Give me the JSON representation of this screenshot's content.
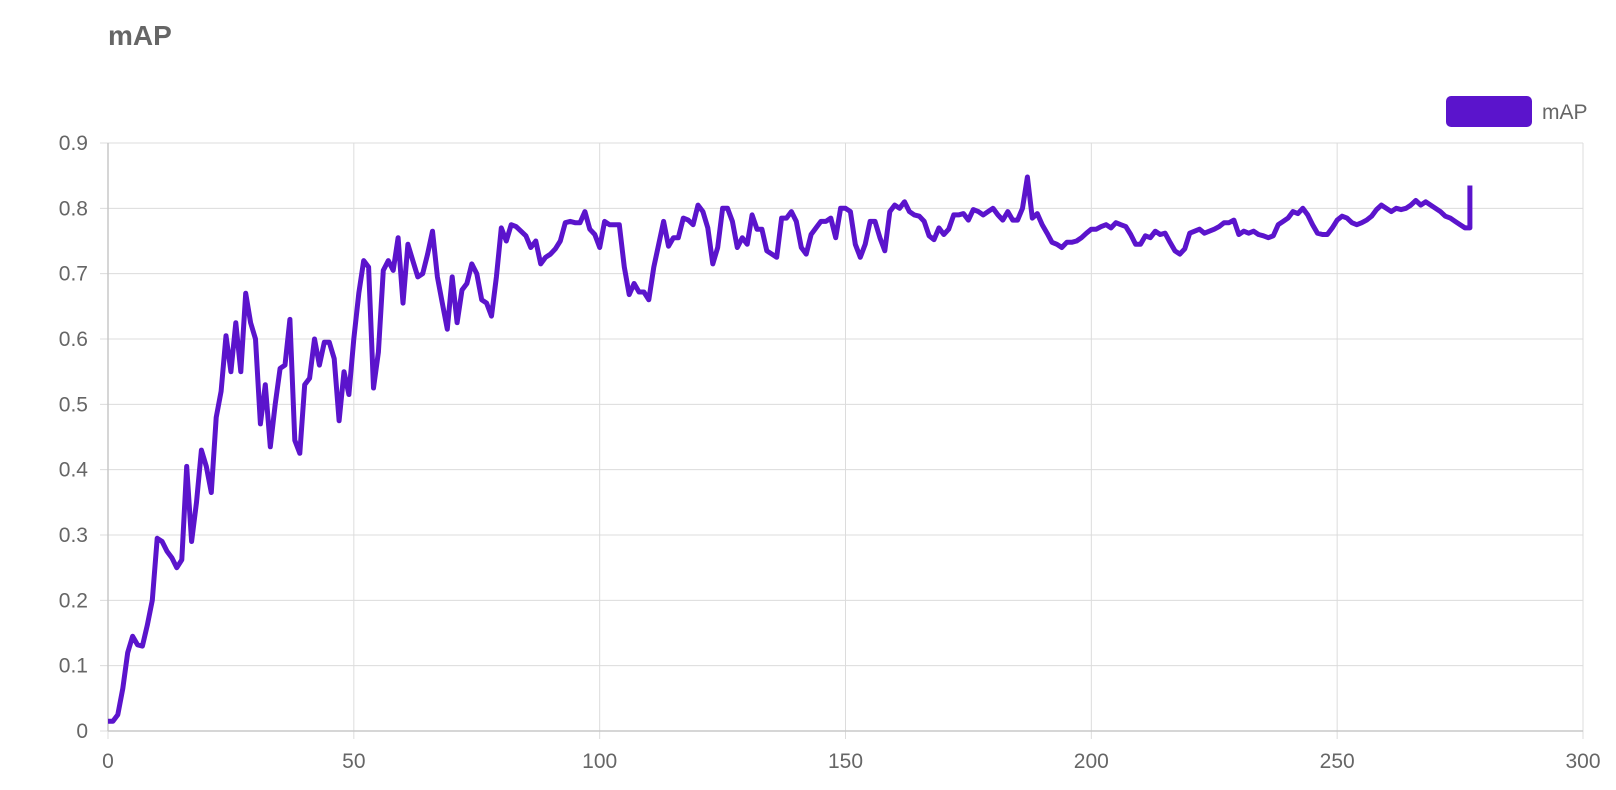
{
  "chart_data": {
    "type": "line",
    "title": "mAP",
    "xlabel": "",
    "ylabel": "",
    "xlim": [
      0,
      300
    ],
    "ylim": [
      0,
      0.9
    ],
    "x_ticks": [
      "0",
      "50",
      "100",
      "150",
      "200",
      "250",
      "300"
    ],
    "y_ticks": [
      "0",
      "0.1",
      "0.2",
      "0.3",
      "0.4",
      "0.5",
      "0.6",
      "0.7",
      "0.8",
      "0.9"
    ],
    "grid": true,
    "legend_position": "top-right",
    "series": [
      {
        "name": "mAP",
        "color": "#5b14cc",
        "x": [
          0,
          1,
          2,
          3,
          4,
          5,
          6,
          7,
          8,
          9,
          10,
          11,
          12,
          13,
          14,
          15,
          16,
          17,
          18,
          19,
          20,
          21,
          22,
          23,
          24,
          25,
          26,
          27,
          28,
          29,
          30,
          31,
          32,
          33,
          34,
          35,
          36,
          37,
          38,
          39,
          40,
          41,
          42,
          43,
          44,
          45,
          46,
          47,
          48,
          49,
          50,
          51,
          52,
          53,
          54,
          55,
          56,
          57,
          58,
          59,
          60,
          61,
          62,
          63,
          64,
          65,
          66,
          67,
          68,
          69,
          70,
          71,
          72,
          73,
          74,
          75,
          76,
          77,
          78,
          79,
          80,
          81,
          82,
          83,
          84,
          85,
          86,
          87,
          88,
          89,
          90,
          91,
          92,
          93,
          94,
          95,
          96,
          97,
          98,
          99,
          100,
          101,
          102,
          103,
          104,
          105,
          106,
          107,
          108,
          109,
          110,
          111,
          112,
          113,
          114,
          115,
          116,
          117,
          118,
          119,
          120,
          121,
          122,
          123,
          124,
          125,
          126,
          127,
          128,
          129,
          130,
          131,
          132,
          133,
          134,
          135,
          136,
          137,
          138,
          139,
          140,
          141,
          142,
          143,
          144,
          145,
          146,
          147,
          148,
          149,
          150,
          151,
          152,
          153,
          154,
          155,
          156,
          157,
          158,
          159,
          160,
          161,
          162,
          163,
          164,
          165,
          166,
          167,
          168,
          169,
          170,
          171,
          172,
          173,
          174,
          175,
          176,
          177,
          178,
          179,
          180,
          181,
          182,
          183,
          184,
          185,
          186,
          187,
          188,
          189,
          190,
          191,
          192,
          193,
          194,
          195,
          196,
          197,
          198,
          199,
          200,
          201,
          202,
          203,
          204,
          205,
          206,
          207,
          208,
          209,
          210,
          211,
          212,
          213,
          214,
          215,
          216,
          217,
          218,
          219,
          220,
          221,
          222,
          223,
          224,
          225,
          226,
          227,
          228,
          229,
          230,
          231,
          232,
          233,
          234,
          235,
          236,
          237,
          238,
          239,
          240,
          241,
          242,
          243,
          244,
          245,
          246,
          247,
          248,
          249,
          250,
          251,
          252,
          253,
          254,
          255,
          256,
          257,
          258,
          259,
          260,
          261,
          262,
          263,
          264,
          265,
          266,
          267,
          268,
          269,
          270,
          271,
          272,
          273,
          274,
          275,
          276,
          277,
          277
        ],
        "values": [
          0.015,
          0.015,
          0.025,
          0.065,
          0.12,
          0.145,
          0.132,
          0.13,
          0.162,
          0.2,
          0.295,
          0.29,
          0.275,
          0.265,
          0.25,
          0.262,
          0.405,
          0.29,
          0.35,
          0.43,
          0.405,
          0.365,
          0.48,
          0.52,
          0.605,
          0.55,
          0.625,
          0.55,
          0.67,
          0.625,
          0.6,
          0.47,
          0.53,
          0.435,
          0.5,
          0.555,
          0.56,
          0.63,
          0.445,
          0.425,
          0.53,
          0.54,
          0.6,
          0.56,
          0.595,
          0.595,
          0.57,
          0.475,
          0.55,
          0.515,
          0.6,
          0.67,
          0.72,
          0.71,
          0.525,
          0.58,
          0.705,
          0.72,
          0.705,
          0.755,
          0.655,
          0.745,
          0.72,
          0.695,
          0.7,
          0.73,
          0.765,
          0.695,
          0.655,
          0.615,
          0.695,
          0.625,
          0.675,
          0.685,
          0.715,
          0.7,
          0.66,
          0.655,
          0.635,
          0.695,
          0.77,
          0.75,
          0.775,
          0.772,
          0.765,
          0.758,
          0.74,
          0.75,
          0.715,
          0.725,
          0.73,
          0.738,
          0.75,
          0.778,
          0.78,
          0.778,
          0.778,
          0.795,
          0.768,
          0.76,
          0.74,
          0.78,
          0.775,
          0.775,
          0.775,
          0.71,
          0.668,
          0.685,
          0.672,
          0.672,
          0.66,
          0.71,
          0.745,
          0.78,
          0.742,
          0.755,
          0.755,
          0.785,
          0.782,
          0.775,
          0.805,
          0.795,
          0.77,
          0.715,
          0.74,
          0.8,
          0.8,
          0.78,
          0.74,
          0.755,
          0.745,
          0.79,
          0.768,
          0.768,
          0.735,
          0.73,
          0.725,
          0.785,
          0.785,
          0.795,
          0.78,
          0.74,
          0.73,
          0.76,
          0.77,
          0.78,
          0.78,
          0.785,
          0.755,
          0.8,
          0.8,
          0.795,
          0.745,
          0.725,
          0.745,
          0.78,
          0.78,
          0.755,
          0.735,
          0.795,
          0.805,
          0.8,
          0.81,
          0.795,
          0.79,
          0.788,
          0.78,
          0.758,
          0.752,
          0.77,
          0.76,
          0.768,
          0.79,
          0.79,
          0.792,
          0.782,
          0.798,
          0.795,
          0.79,
          0.795,
          0.8,
          0.79,
          0.782,
          0.795,
          0.782,
          0.782,
          0.8,
          0.848,
          0.785,
          0.792,
          0.775,
          0.762,
          0.748,
          0.745,
          0.74,
          0.748,
          0.748,
          0.75,
          0.755,
          0.762,
          0.768,
          0.768,
          0.772,
          0.775,
          0.77,
          0.778,
          0.775,
          0.772,
          0.76,
          0.745,
          0.745,
          0.758,
          0.755,
          0.765,
          0.76,
          0.762,
          0.748,
          0.735,
          0.73,
          0.738,
          0.762,
          0.765,
          0.768,
          0.762,
          0.765,
          0.768,
          0.772,
          0.778,
          0.778,
          0.782,
          0.76,
          0.765,
          0.762,
          0.765,
          0.76,
          0.758,
          0.755,
          0.758,
          0.775,
          0.78,
          0.785,
          0.795,
          0.792,
          0.8,
          0.79,
          0.775,
          0.762,
          0.76,
          0.76,
          0.77,
          0.782,
          0.788,
          0.785,
          0.778,
          0.775,
          0.778,
          0.782,
          0.788,
          0.798,
          0.805,
          0.8,
          0.795,
          0.8,
          0.798,
          0.8,
          0.805,
          0.812,
          0.805,
          0.81,
          0.805,
          0.8,
          0.795,
          0.788,
          0.785,
          0.78,
          0.775,
          0.77,
          0.77,
          0.835
        ]
      }
    ]
  }
}
